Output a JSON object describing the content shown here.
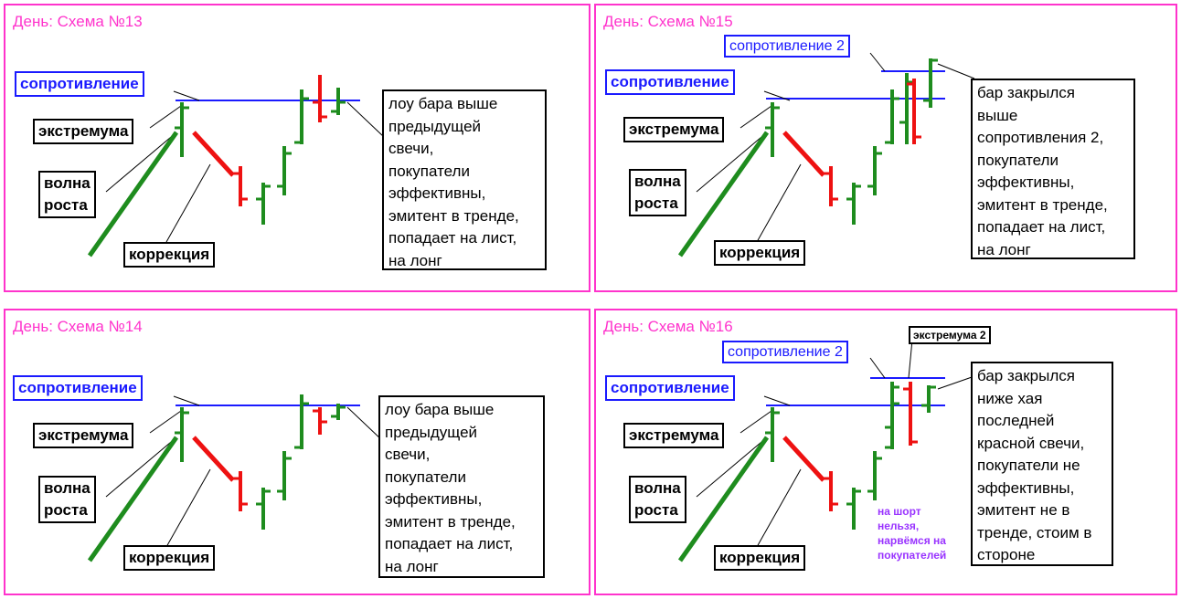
{
  "colors": {
    "frame": "#ff33cc",
    "resistance": "#1a1aff",
    "bull": "#1e8c1e",
    "bear": "#ee1111",
    "note": "#9933ff"
  },
  "labels": {
    "resistance": "сопротивление",
    "resistance2": "сопротивление 2",
    "extremum": "экстремума",
    "extremum2": "экстремума 2",
    "wave": "волна\nроста",
    "correction": "коррекция"
  },
  "panels": {
    "p13": {
      "title": "День: Схема №13",
      "description": "лоу бара выше\nпредыдущей\nсвечи,\nпокупатели\nэффективны,\nэмитент в тренде,\nпопадает на лист,\nна лонг"
    },
    "p14": {
      "title": "День: Схема №14",
      "description": "лоу бара выше\nпредыдущей\nсвечи,\nпокупатели\nэффективны,\nэмитент в тренде,\nпопадает на лист,\nна лонг"
    },
    "p15": {
      "title": "День: Схема №15",
      "description": "бар закрылся\nвыше\nсопротивления 2,\nпокупатели\nэффективны,\nэмитент в тренде,\nпопадает на лист,\nна лонг"
    },
    "p16": {
      "title": "День: Схема №16",
      "description": "бар закрылся\nниже хая\nпоследней\nкрасной свечи,\nпокупатели не\nэффективны,\nэмитент не в\nтренде, стоим в\nстороне",
      "note": "на шорт\nнельзя,\nнарвёмся на\nпокупателей"
    }
  }
}
